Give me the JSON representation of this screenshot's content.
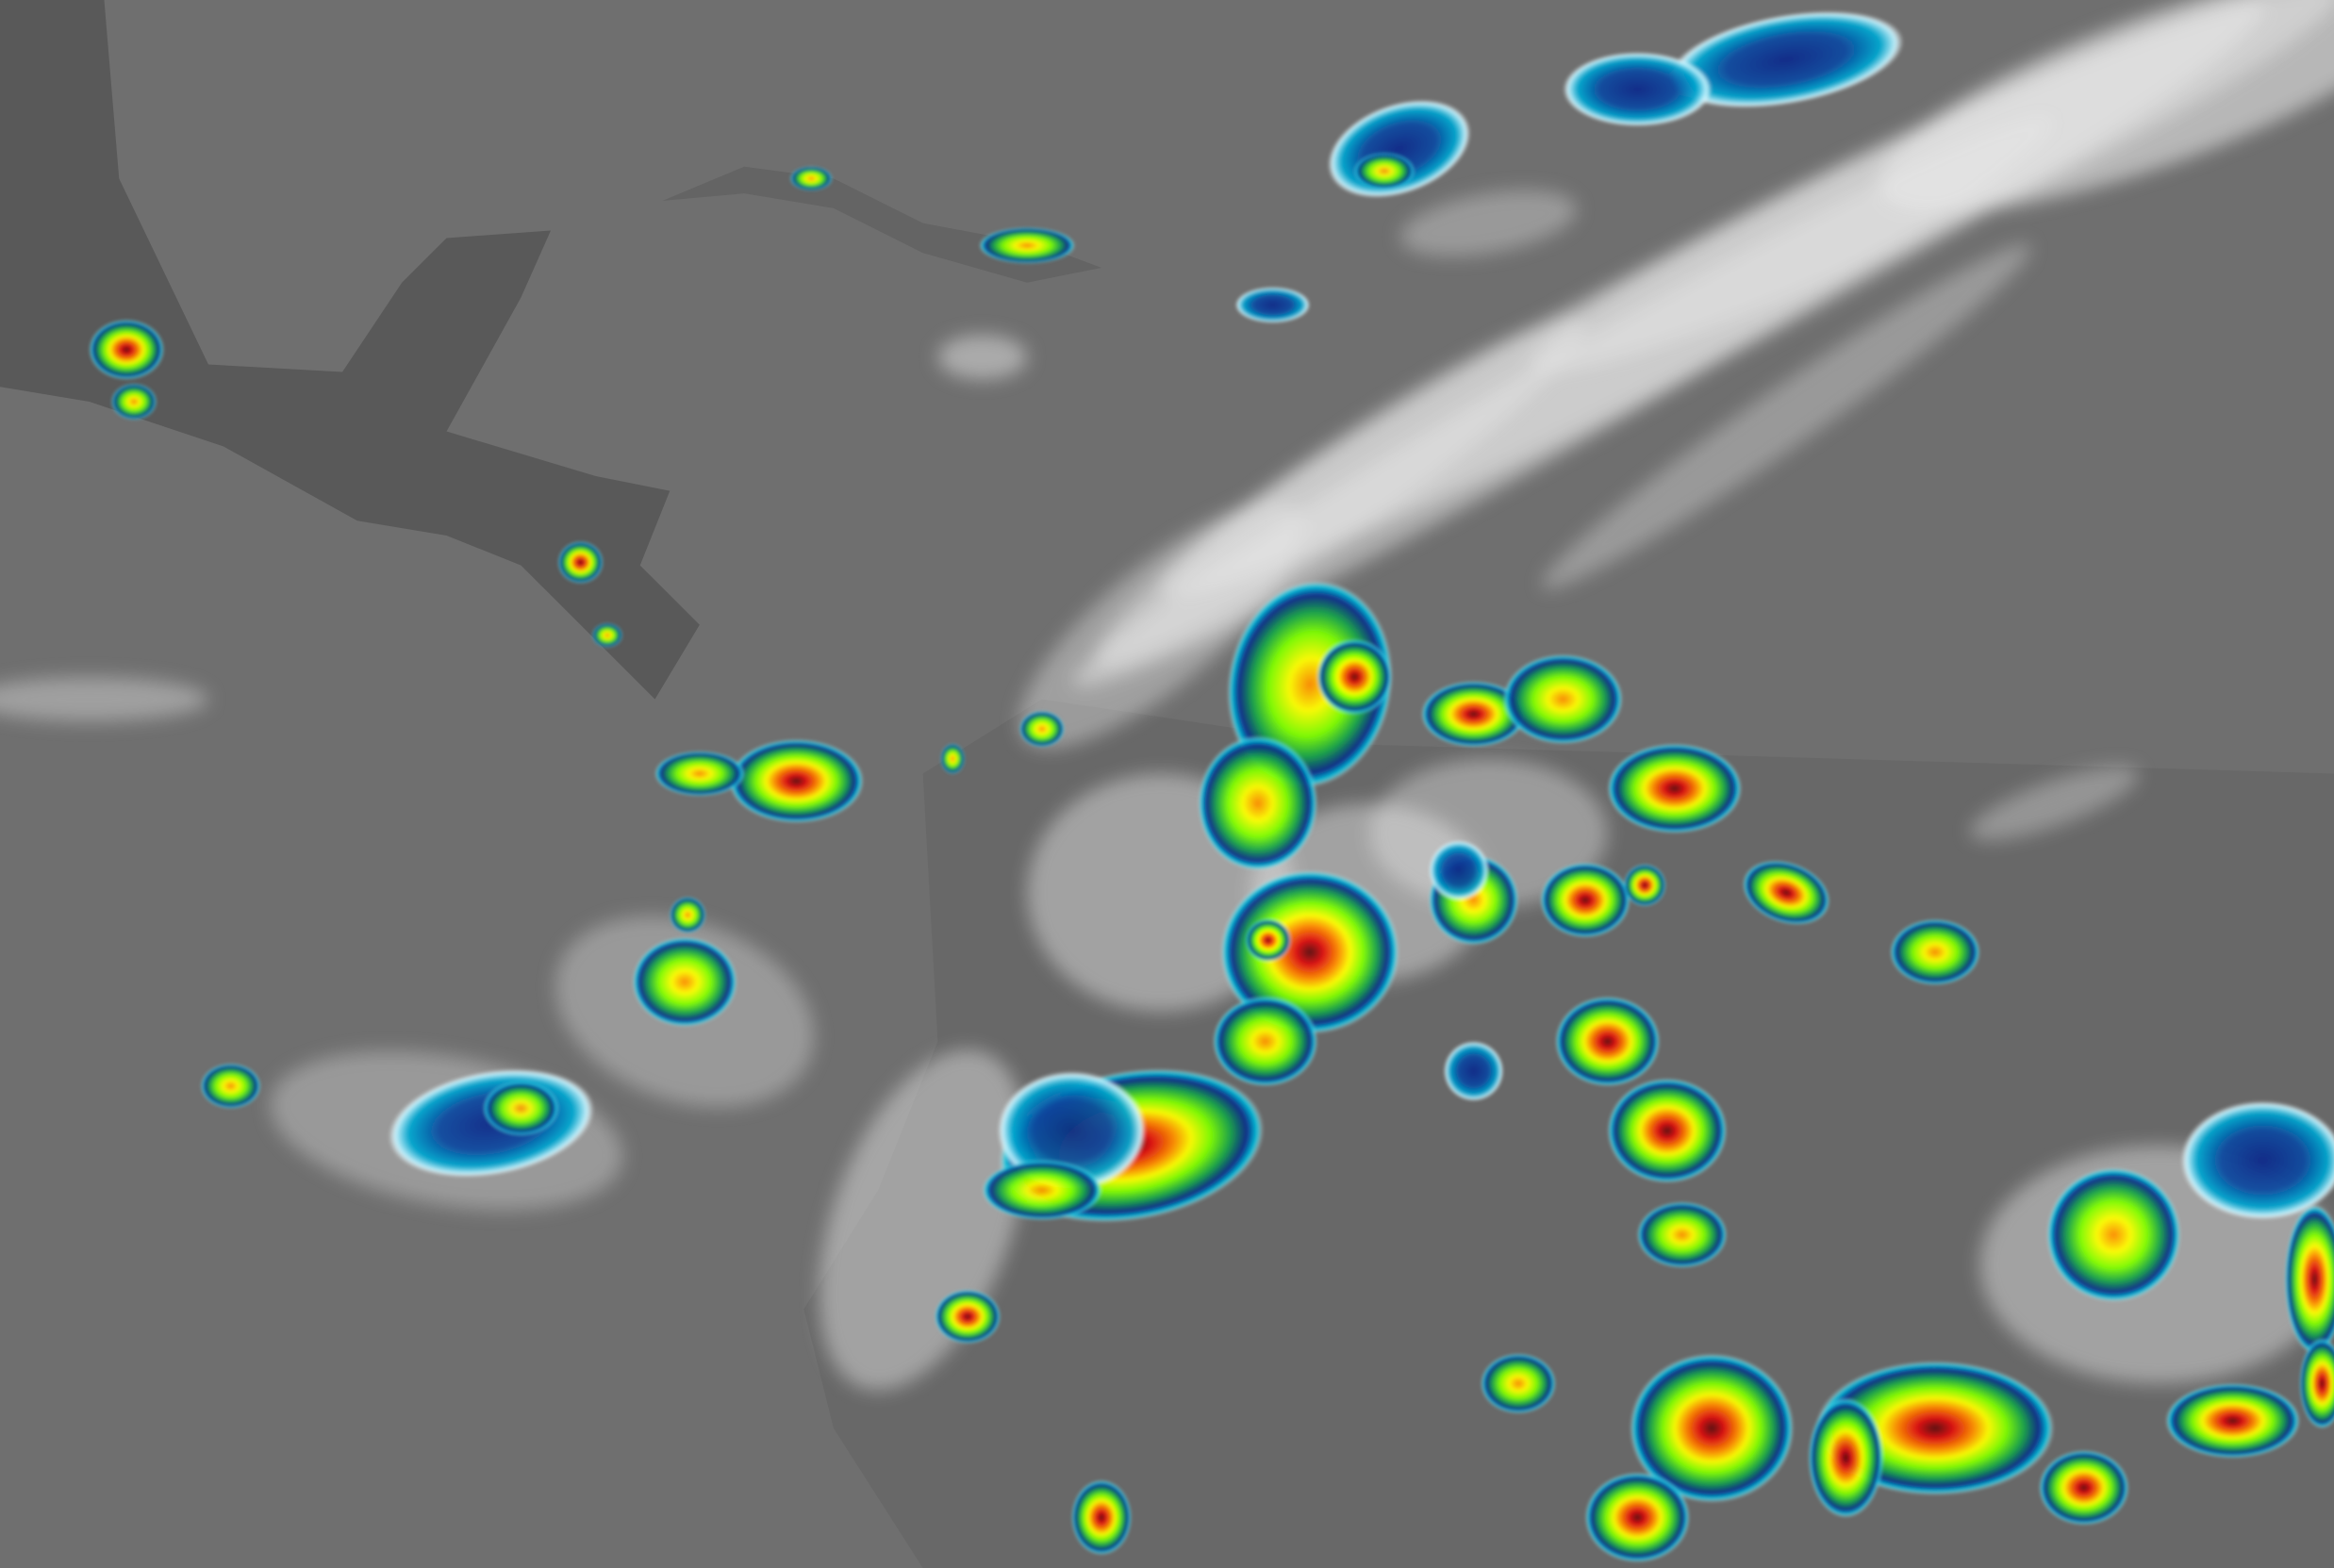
{
  "image": {
    "kind": "infrared satellite imagery, enhanced color",
    "colors": {
      "ocean": "#6f6f6f",
      "land": "#555555",
      "cirrus": "#e8e8e8",
      "enhancement_scale": [
        "#00c8e0",
        "#0a2a8a",
        "#17a34a",
        "#7fff00",
        "#ffff00",
        "#ff8c00",
        "#e01010",
        "#5a0a0a"
      ]
    }
  }
}
